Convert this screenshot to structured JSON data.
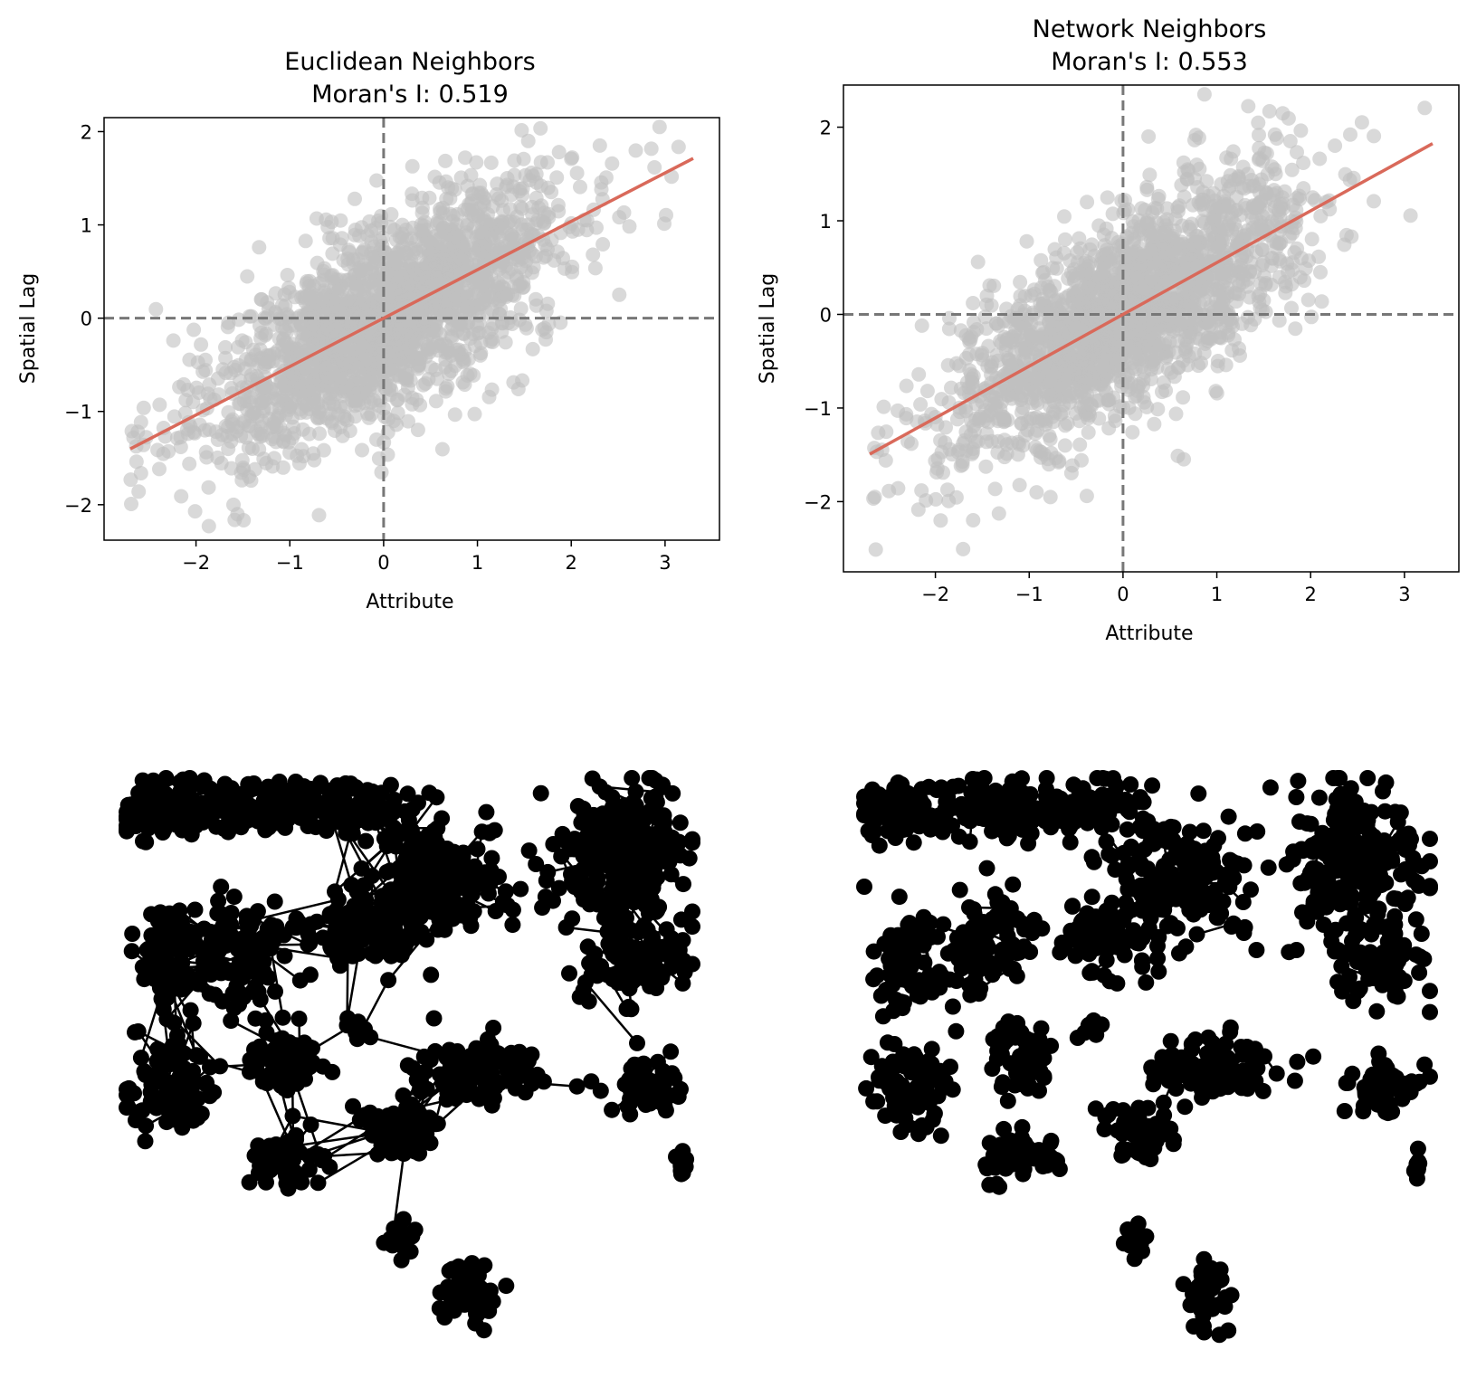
{
  "colors": {
    "points": "#bfbfbf",
    "fit_line": "#d9695a",
    "ref_lines": "#777777",
    "network": "#000000"
  },
  "chart_data": [
    {
      "type": "scatter",
      "title": "Euclidean Neighbors",
      "subtitle": "Moran's I: 0.519",
      "xlabel": "Attribute",
      "ylabel": "Spatial Lag",
      "xlim": [
        -2.98,
        3.58
      ],
      "ylim": [
        -2.38,
        2.15
      ],
      "xticks": [
        -2,
        -1,
        0,
        1,
        2,
        3
      ],
      "xtick_labels": [
        "−2",
        "−1",
        "0",
        "1",
        "2",
        "3"
      ],
      "yticks": [
        -2,
        -1,
        0,
        1,
        2
      ],
      "ytick_labels": [
        "−2",
        "−1",
        "0",
        "1",
        "2"
      ],
      "fit_line": {
        "slope": 0.519,
        "x": [
          -2.7,
          3.3
        ]
      },
      "reference_lines": {
        "x": 0,
        "y": 0,
        "style": "dashed"
      },
      "grid": false,
      "approx_points": 2000
    },
    {
      "type": "scatter",
      "title": "Network Neighbors",
      "subtitle": "Moran's I: 0.553",
      "xlabel": "Attribute",
      "ylabel": "Spatial Lag",
      "xlim": [
        -2.98,
        3.58
      ],
      "ylim": [
        -2.75,
        2.45
      ],
      "xticks": [
        -2,
        -1,
        0,
        1,
        2,
        3
      ],
      "xtick_labels": [
        "−2",
        "−1",
        "0",
        "1",
        "2",
        "3"
      ],
      "yticks": [
        -2,
        -1,
        0,
        1,
        2
      ],
      "ytick_labels": [
        "−2",
        "−1",
        "0",
        "1",
        "2"
      ],
      "fit_line": {
        "slope": 0.553,
        "x": [
          -2.7,
          3.3
        ]
      },
      "reference_lines": {
        "x": 0,
        "y": 0,
        "style": "dashed"
      },
      "grid": false,
      "approx_points": 2000
    }
  ],
  "networks": [
    {
      "name": "euclidean-neighbors-graph",
      "style": "dense-black-node-link"
    },
    {
      "name": "network-neighbors-graph",
      "style": "black-node-link"
    }
  ]
}
